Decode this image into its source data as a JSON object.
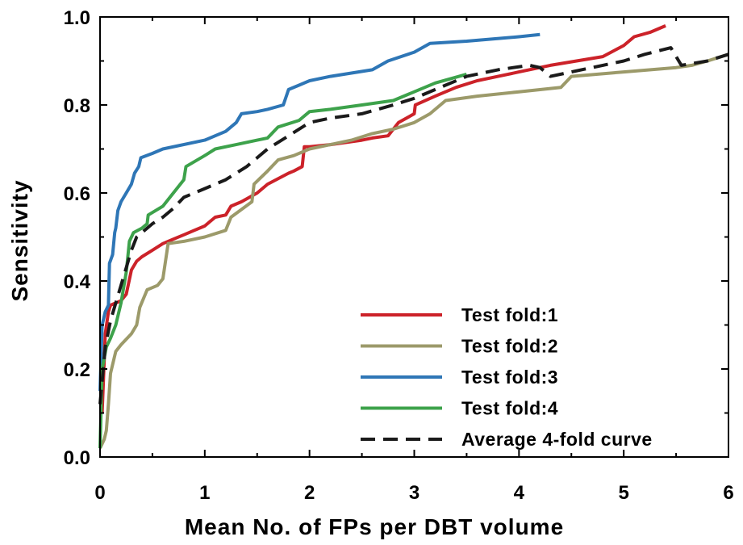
{
  "chart_data": {
    "type": "line",
    "title": "",
    "xlabel": "Mean No. of FPs per DBT volume",
    "ylabel": "Sensitivity",
    "xlim": [
      0,
      6
    ],
    "ylim": [
      0,
      1
    ],
    "x_ticks": [
      "0",
      "1",
      "2",
      "3",
      "4",
      "5",
      "6"
    ],
    "y_ticks": [
      "0.0",
      "0.2",
      "0.4",
      "0.6",
      "0.8",
      "1.0"
    ],
    "grid": false,
    "legend_position": "bottom-right",
    "series": [
      {
        "name": "Test fold:1",
        "color": "#cc2229",
        "dash": "solid",
        "points": [
          [
            0.02,
            0.1
          ],
          [
            0.05,
            0.28
          ],
          [
            0.08,
            0.33
          ],
          [
            0.1,
            0.345
          ],
          [
            0.2,
            0.355
          ],
          [
            0.25,
            0.37
          ],
          [
            0.3,
            0.425
          ],
          [
            0.35,
            0.445
          ],
          [
            0.4,
            0.455
          ],
          [
            0.5,
            0.47
          ],
          [
            0.6,
            0.485
          ],
          [
            0.7,
            0.495
          ],
          [
            0.8,
            0.505
          ],
          [
            0.9,
            0.515
          ],
          [
            1.0,
            0.525
          ],
          [
            1.05,
            0.535
          ],
          [
            1.1,
            0.545
          ],
          [
            1.2,
            0.55
          ],
          [
            1.25,
            0.57
          ],
          [
            1.35,
            0.58
          ],
          [
            1.5,
            0.6
          ],
          [
            1.6,
            0.62
          ],
          [
            1.8,
            0.645
          ],
          [
            1.85,
            0.65
          ],
          [
            1.93,
            0.66
          ],
          [
            1.95,
            0.705
          ],
          [
            2.0,
            0.705
          ],
          [
            2.2,
            0.71
          ],
          [
            2.5,
            0.72
          ],
          [
            2.6,
            0.725
          ],
          [
            2.75,
            0.73
          ],
          [
            2.85,
            0.76
          ],
          [
            3.0,
            0.78
          ],
          [
            3.01,
            0.8
          ],
          [
            3.2,
            0.82
          ],
          [
            3.4,
            0.84
          ],
          [
            3.6,
            0.855
          ],
          [
            3.8,
            0.865
          ],
          [
            4.0,
            0.875
          ],
          [
            4.3,
            0.89
          ],
          [
            4.55,
            0.9
          ],
          [
            4.8,
            0.91
          ],
          [
            5.0,
            0.935
          ],
          [
            5.1,
            0.955
          ],
          [
            5.25,
            0.965
          ],
          [
            5.4,
            0.98
          ]
        ]
      },
      {
        "name": "Test fold:2",
        "color": "#9c9a6a",
        "dash": "solid",
        "points": [
          [
            0.0,
            0.02
          ],
          [
            0.04,
            0.04
          ],
          [
            0.06,
            0.06
          ],
          [
            0.08,
            0.12
          ],
          [
            0.1,
            0.19
          ],
          [
            0.15,
            0.24
          ],
          [
            0.2,
            0.255
          ],
          [
            0.3,
            0.28
          ],
          [
            0.35,
            0.3
          ],
          [
            0.38,
            0.34
          ],
          [
            0.45,
            0.38
          ],
          [
            0.5,
            0.385
          ],
          [
            0.55,
            0.39
          ],
          [
            0.6,
            0.405
          ],
          [
            0.65,
            0.485
          ],
          [
            0.8,
            0.49
          ],
          [
            1.0,
            0.5
          ],
          [
            1.2,
            0.515
          ],
          [
            1.25,
            0.545
          ],
          [
            1.45,
            0.58
          ],
          [
            1.47,
            0.62
          ],
          [
            1.6,
            0.65
          ],
          [
            1.7,
            0.675
          ],
          [
            1.85,
            0.685
          ],
          [
            2.0,
            0.7
          ],
          [
            2.2,
            0.71
          ],
          [
            2.4,
            0.72
          ],
          [
            2.6,
            0.735
          ],
          [
            2.8,
            0.745
          ],
          [
            3.0,
            0.76
          ],
          [
            3.15,
            0.78
          ],
          [
            3.3,
            0.81
          ],
          [
            3.6,
            0.82
          ],
          [
            4.0,
            0.83
          ],
          [
            4.4,
            0.84
          ],
          [
            4.5,
            0.865
          ],
          [
            5.0,
            0.875
          ],
          [
            5.5,
            0.885
          ],
          [
            5.65,
            0.89
          ],
          [
            5.8,
            0.9
          ],
          [
            6.0,
            0.915
          ]
        ]
      },
      {
        "name": "Test fold:3",
        "color": "#2e76b6",
        "dash": "solid",
        "points": [
          [
            0.0,
            0.15
          ],
          [
            0.02,
            0.3
          ],
          [
            0.05,
            0.33
          ],
          [
            0.08,
            0.345
          ],
          [
            0.09,
            0.44
          ],
          [
            0.12,
            0.46
          ],
          [
            0.14,
            0.51
          ],
          [
            0.15,
            0.52
          ],
          [
            0.17,
            0.56
          ],
          [
            0.2,
            0.58
          ],
          [
            0.25,
            0.6
          ],
          [
            0.3,
            0.62
          ],
          [
            0.33,
            0.645
          ],
          [
            0.37,
            0.66
          ],
          [
            0.39,
            0.68
          ],
          [
            0.5,
            0.69
          ],
          [
            0.6,
            0.7
          ],
          [
            1.0,
            0.72
          ],
          [
            1.2,
            0.74
          ],
          [
            1.3,
            0.76
          ],
          [
            1.35,
            0.78
          ],
          [
            1.5,
            0.785
          ],
          [
            1.6,
            0.79
          ],
          [
            1.75,
            0.8
          ],
          [
            1.8,
            0.835
          ],
          [
            1.9,
            0.845
          ],
          [
            2.0,
            0.855
          ],
          [
            2.2,
            0.865
          ],
          [
            2.6,
            0.88
          ],
          [
            2.75,
            0.9
          ],
          [
            3.0,
            0.92
          ],
          [
            3.15,
            0.94
          ],
          [
            3.5,
            0.945
          ],
          [
            4.0,
            0.955
          ],
          [
            4.2,
            0.96
          ]
        ]
      },
      {
        "name": "Test fold:4",
        "color": "#3da24b",
        "dash": "solid",
        "points": [
          [
            0.0,
            0.02
          ],
          [
            0.02,
            0.2
          ],
          [
            0.06,
            0.25
          ],
          [
            0.1,
            0.27
          ],
          [
            0.15,
            0.3
          ],
          [
            0.2,
            0.35
          ],
          [
            0.25,
            0.42
          ],
          [
            0.28,
            0.49
          ],
          [
            0.32,
            0.51
          ],
          [
            0.4,
            0.52
          ],
          [
            0.45,
            0.53
          ],
          [
            0.46,
            0.55
          ],
          [
            0.6,
            0.57
          ],
          [
            0.7,
            0.6
          ],
          [
            0.8,
            0.63
          ],
          [
            0.82,
            0.66
          ],
          [
            1.0,
            0.685
          ],
          [
            1.1,
            0.7
          ],
          [
            1.3,
            0.71
          ],
          [
            1.5,
            0.72
          ],
          [
            1.6,
            0.725
          ],
          [
            1.7,
            0.75
          ],
          [
            1.9,
            0.765
          ],
          [
            2.0,
            0.785
          ],
          [
            2.2,
            0.79
          ],
          [
            2.5,
            0.8
          ],
          [
            2.8,
            0.81
          ],
          [
            3.0,
            0.83
          ],
          [
            3.2,
            0.85
          ],
          [
            3.5,
            0.87
          ]
        ]
      },
      {
        "name": "Average 4-fold curve",
        "color": "#1a1a1a",
        "dash": "dashed",
        "points": [
          [
            0.0,
            0.12
          ],
          [
            0.05,
            0.25
          ],
          [
            0.1,
            0.31
          ],
          [
            0.15,
            0.35
          ],
          [
            0.2,
            0.39
          ],
          [
            0.25,
            0.43
          ],
          [
            0.3,
            0.47
          ],
          [
            0.35,
            0.5
          ],
          [
            0.4,
            0.51
          ],
          [
            0.5,
            0.53
          ],
          [
            0.6,
            0.545
          ],
          [
            0.7,
            0.565
          ],
          [
            0.8,
            0.59
          ],
          [
            1.0,
            0.61
          ],
          [
            1.2,
            0.63
          ],
          [
            1.4,
            0.66
          ],
          [
            1.5,
            0.68
          ],
          [
            1.6,
            0.7
          ],
          [
            1.8,
            0.73
          ],
          [
            2.0,
            0.76
          ],
          [
            2.2,
            0.77
          ],
          [
            2.5,
            0.78
          ],
          [
            2.8,
            0.8
          ],
          [
            3.0,
            0.815
          ],
          [
            3.2,
            0.835
          ],
          [
            3.5,
            0.865
          ],
          [
            3.8,
            0.88
          ],
          [
            4.1,
            0.89
          ],
          [
            4.2,
            0.885
          ],
          [
            4.3,
            0.865
          ],
          [
            4.5,
            0.875
          ],
          [
            4.8,
            0.89
          ],
          [
            5.0,
            0.9
          ],
          [
            5.2,
            0.915
          ],
          [
            5.45,
            0.93
          ],
          [
            5.55,
            0.89
          ],
          [
            5.8,
            0.9
          ],
          [
            6.0,
            0.915
          ]
        ]
      }
    ]
  }
}
